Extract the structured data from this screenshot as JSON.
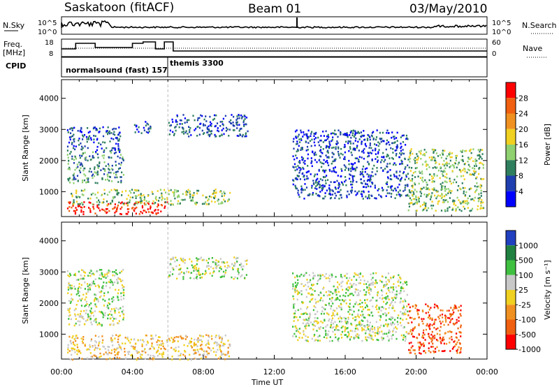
{
  "header": {
    "station": "Saskatoon (fitACF)",
    "beam": "Beam 01",
    "date": "03/May/2010"
  },
  "panels": {
    "sky_label": "N.Sky",
    "search_label": "N.Search",
    "freq_label": "Freq.",
    "freq_unit": "[MHz]",
    "nave_label": "Nave",
    "cpid_label": "CPID",
    "sky_ticks": [
      "10^5",
      "10^0"
    ],
    "search_ticks": [
      "10^5",
      "10^0"
    ],
    "freq_ticks": [
      "18",
      "8"
    ],
    "nave_ticks": [
      "60",
      "0"
    ],
    "cpid_text_1": "normalsound (fast) 157",
    "cpid_text_2": "themis 3300"
  },
  "colors": {
    "power": [
      "#0000ff",
      "#1f3fb0",
      "#2f7f5f",
      "#8fd070",
      "#f0d020",
      "#f09020",
      "#f06010",
      "#ff0000"
    ],
    "velocity": [
      "#2040c0",
      "#208040",
      "#40c040",
      "#c8c8c8",
      "#f0d020",
      "#f09020",
      "#f06010",
      "#ff0000"
    ]
  },
  "chart_data": [
    {
      "type": "heatmap",
      "quantity": "Power",
      "ylabel": "Slant Range [km]",
      "colorbar_label": "Power [dB]",
      "colorbar_ticks": [
        4,
        8,
        12,
        16,
        20,
        24,
        28
      ],
      "y_ticks": [
        1000,
        2000,
        3000,
        4000
      ],
      "ylim": [
        200,
        4600
      ],
      "xlim_hours": [
        0,
        24
      ],
      "x_ticks": [
        "00:00",
        "04:00",
        "08:00",
        "12:00",
        "16:00",
        "20:00",
        "00:00"
      ],
      "xlabel": "Time UT",
      "regions": [
        {
          "t0": 0.3,
          "t1": 6.0,
          "r0": 300,
          "r1": 700,
          "level": 7
        },
        {
          "t0": 0.5,
          "t1": 9.5,
          "r0": 600,
          "r1": 1100,
          "level": 3
        },
        {
          "t0": 0.3,
          "t1": 3.5,
          "r0": 1300,
          "r1": 2300,
          "level": 2
        },
        {
          "t0": 0.3,
          "t1": 3.3,
          "r0": 2300,
          "r1": 3100,
          "level": 1
        },
        {
          "t0": 4.0,
          "t1": 5.0,
          "r0": 2900,
          "r1": 3300,
          "level": 1
        },
        {
          "t0": 6.0,
          "t1": 10.5,
          "r0": 2800,
          "r1": 3500,
          "level": 1
        },
        {
          "t0": 13.0,
          "t1": 19.5,
          "r0": 800,
          "r1": 3000,
          "level": 1
        },
        {
          "t0": 19.5,
          "t1": 23.8,
          "r0": 400,
          "r1": 2400,
          "level": 3
        }
      ]
    },
    {
      "type": "heatmap",
      "quantity": "Velocity",
      "ylabel": "Slant Range [km]",
      "colorbar_label": "Velocity [m s⁻¹]",
      "colorbar_ticks": [
        1000,
        500,
        100,
        25,
        -25,
        -100,
        -500,
        -1000
      ],
      "y_ticks": [
        1000,
        2000,
        3000,
        4000
      ],
      "ylim": [
        200,
        4600
      ],
      "xlim_hours": [
        0,
        24
      ],
      "x_ticks": [
        "00:00",
        "04:00",
        "08:00",
        "12:00",
        "16:00",
        "20:00",
        "00:00"
      ],
      "xlabel": "Time UT",
      "regions": [
        {
          "t0": 0.3,
          "t1": 9.5,
          "r0": 200,
          "r1": 1000,
          "level": 4
        },
        {
          "t0": 0.3,
          "t1": 3.5,
          "r0": 1300,
          "r1": 3100,
          "level": 3
        },
        {
          "t0": 6.0,
          "t1": 10.5,
          "r0": 2800,
          "r1": 3500,
          "level": 3
        },
        {
          "t0": 13.0,
          "t1": 19.5,
          "r0": 800,
          "r1": 3000,
          "level": 3
        },
        {
          "t0": 19.5,
          "t1": 22.5,
          "r0": 400,
          "r1": 2000,
          "level": 6
        }
      ]
    }
  ]
}
